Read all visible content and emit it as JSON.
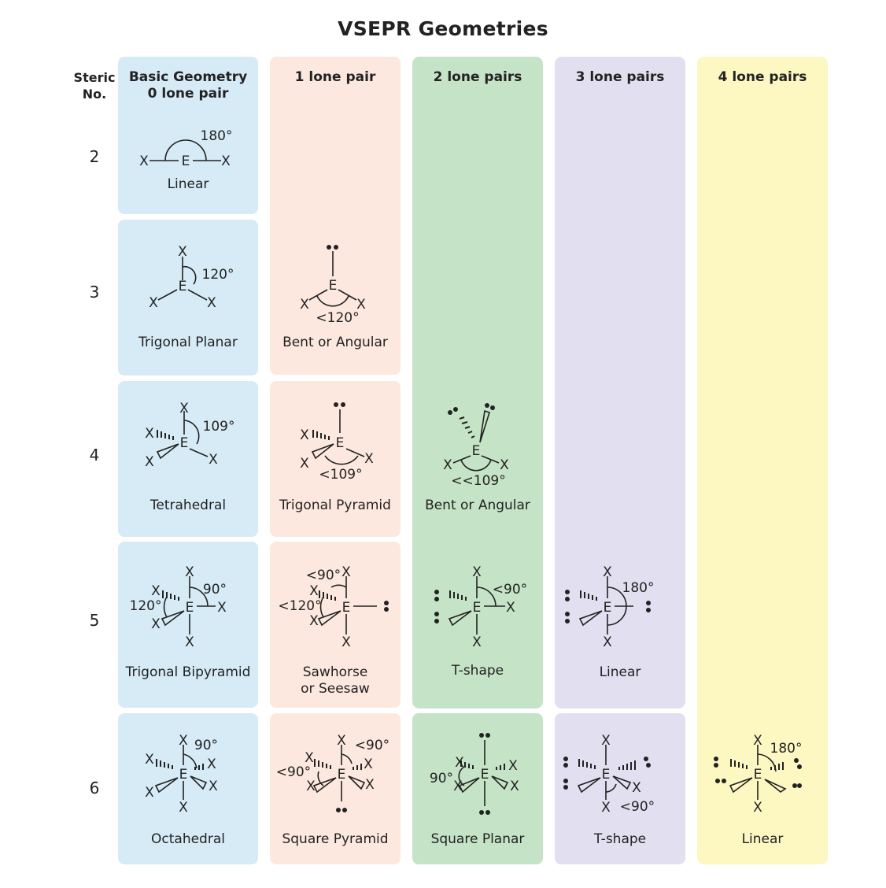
{
  "title": "VSEPR Geometries",
  "steric_header": [
    "Steric",
    "No."
  ],
  "steric_numbers": [
    "2",
    "3",
    "4",
    "5",
    "6"
  ],
  "colors": {
    "blue": "#d6ebf6",
    "peach": "#fde8df",
    "green": "#c5e3c6",
    "lavender": "#e2dff0",
    "yellow": "#fdf7c2"
  },
  "columns": [
    {
      "header": [
        "Basic Geometry",
        "0 lone pair"
      ]
    },
    {
      "header": [
        "1 lone pair"
      ]
    },
    {
      "header": [
        "2 lone pairs"
      ]
    },
    {
      "header": [
        "3 lone pairs"
      ]
    },
    {
      "header": [
        "4 lone pairs"
      ]
    }
  ],
  "cells": {
    "c0r2": {
      "name": [
        "Linear"
      ],
      "angle": "180°"
    },
    "c0r3": {
      "name": [
        "Trigonal Planar"
      ],
      "angle": "120°"
    },
    "c0r4": {
      "name": [
        "Tetrahedral"
      ],
      "angle": "109°"
    },
    "c0r5": {
      "name": [
        "Trigonal Bipyramid"
      ],
      "angle": "90°",
      "angle2": "120°"
    },
    "c0r6": {
      "name": [
        "Octahedral"
      ],
      "angle": "90°"
    },
    "c1r3": {
      "name": [
        "Bent or Angular"
      ],
      "angle": "<120°"
    },
    "c1r4": {
      "name": [
        "Trigonal Pyramid"
      ],
      "angle": "<109°"
    },
    "c1r5": {
      "name": [
        "Sawhorse",
        "or Seesaw"
      ],
      "angle": "<90°",
      "angle2": "<120°"
    },
    "c1r6": {
      "name": [
        "Square Pyramid"
      ],
      "angle": "<90°",
      "angle2": "<90°"
    },
    "c2r4": {
      "name": [
        "Bent or Angular"
      ],
      "angle": "<<109°"
    },
    "c2r5": {
      "name": [
        "T-shape"
      ],
      "angle": "<90°"
    },
    "c2r6": {
      "name": [
        "Square Planar"
      ],
      "angle": "90°"
    },
    "c3r5": {
      "name": [
        "Linear"
      ],
      "angle": "180°"
    },
    "c3r6": {
      "name": [
        "T-shape"
      ],
      "angle": "<90°"
    },
    "c4r6": {
      "name": [
        "Linear"
      ],
      "angle": "180°"
    }
  },
  "atoms": {
    "central": "E",
    "ligand": "X"
  }
}
